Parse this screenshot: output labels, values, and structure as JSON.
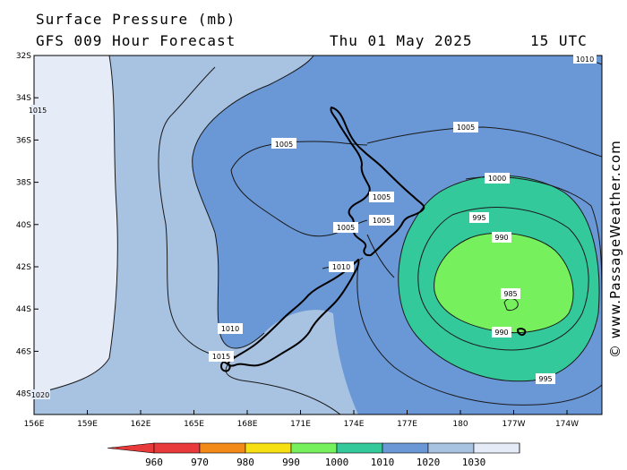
{
  "header": {
    "title": "Surface Pressure (mb)",
    "forecast": "GFS 009 Hour Forecast",
    "date": "Thu 01 May 2025",
    "time": "15 UTC"
  },
  "credit": "© www.PassageWeather.com",
  "axes": {
    "lat_labels": [
      "32S",
      "34S",
      "36S",
      "38S",
      "40S",
      "42S",
      "44S",
      "46S",
      "48S"
    ],
    "lon_labels": [
      "156E",
      "159E",
      "162E",
      "165E",
      "168E",
      "171E",
      "174E",
      "177E",
      "180",
      "177W",
      "174W"
    ]
  },
  "isobar_labels": {
    "top_right": "1010",
    "left_edge": "1015",
    "north_tasman": "1005",
    "north_east": "1005",
    "low_outer": "1000",
    "taranaki_a": "1005",
    "taranaki_b": "1005",
    "west_nz": "1005",
    "cook_strait": "1010",
    "low_995_north": "995",
    "low_990_north": "990",
    "low_center": "985",
    "low_990_south": "990",
    "stewart": "1010",
    "south_west": "1015",
    "low_995_south": "995",
    "bottom_left": "1020"
  },
  "legend": {
    "labels": [
      "960",
      "970",
      "980",
      "990",
      "1000",
      "1010",
      "1020",
      "1030"
    ],
    "colors": [
      "#e83a3a",
      "#f28a1a",
      "#f7e011",
      "#77f05e",
      "#34c99a",
      "#6a97d6",
      "#a8c2e2",
      "#e6ecf7"
    ]
  },
  "colors": {
    "band_1020": "#e6ecf7",
    "band_1015": "#a8c2e2",
    "band_1010": "#6a97d6",
    "band_1005": "#6a97d6",
    "band_995": "#34c99a",
    "band_985": "#77f05e"
  }
}
